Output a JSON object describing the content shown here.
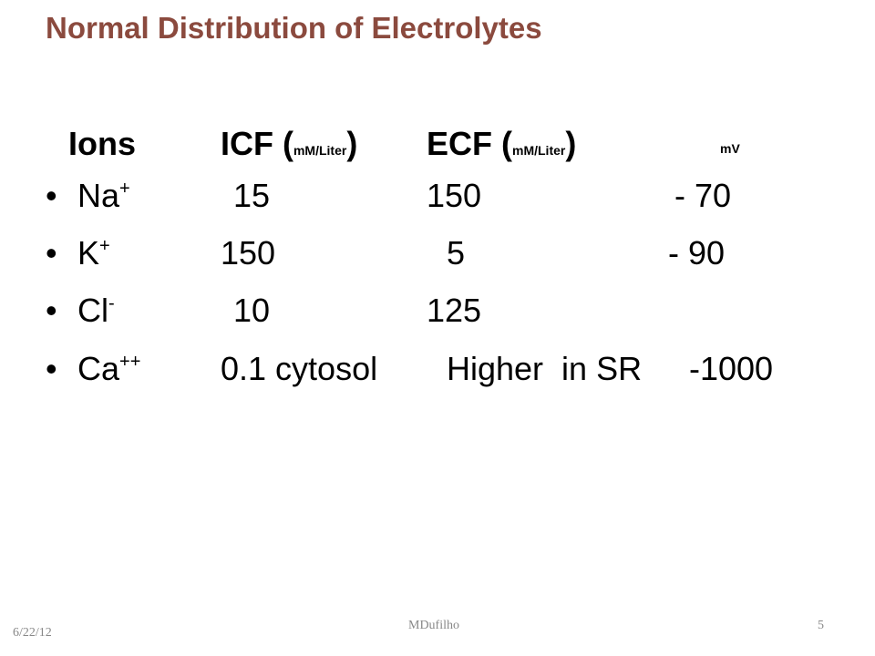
{
  "title": "Normal Distribution of Electrolytes",
  "header": {
    "ions": "Ions",
    "icf": [
      "ICF (",
      "mM/Liter",
      ")"
    ],
    "ecf": [
      "ECF (",
      "mM/Liter",
      ")"
    ],
    "mv": "mV"
  },
  "rows": [
    {
      "ion": "Na",
      "charge": "+",
      "icf": "15",
      "ecf": "150",
      "mv": "- 70"
    },
    {
      "ion": "K",
      "charge": "+",
      "icf": "150",
      "ecf": "5",
      "mv": "- 90"
    },
    {
      "ion": "Cl",
      "charge": "-",
      "icf": "10",
      "ecf": "125"
    },
    {
      "ion": "Ca",
      "charge": "++",
      "icf": "0.1 cytosol",
      "ecf": "Higher  in SR",
      "mv": "-1000"
    }
  ],
  "footer": {
    "date": "6/22/12",
    "author": "MDufilho",
    "page": "5"
  }
}
